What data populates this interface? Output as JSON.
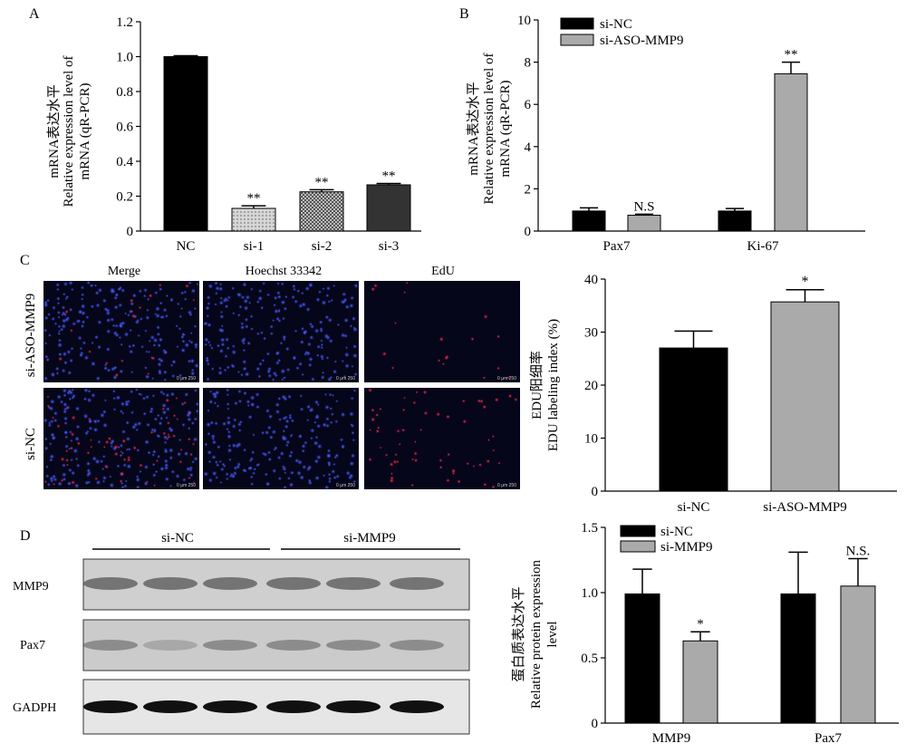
{
  "chart_data": [
    {
      "panel": "A",
      "type": "bar",
      "ylabel_cn": "mRNA表达水平",
      "ylabel_en1": "Relative expression level of",
      "ylabel_en2": "mRNA (qR-PCR)",
      "ylim": [
        0,
        1.2
      ],
      "yticks": [
        "0",
        "0.2",
        "0.4",
        "0.6",
        "0.8",
        "1.0",
        "1.2"
      ],
      "categories": [
        "NC",
        "si-1",
        "si-2",
        "si-3"
      ],
      "values": [
        1.0,
        0.13,
        0.225,
        0.265
      ],
      "errors": [
        0.005,
        0.015,
        0.012,
        0.008
      ],
      "annotations": [
        "",
        "**",
        "**",
        "**"
      ],
      "bar_styles": [
        "black",
        "dots",
        "checker",
        "dark"
      ]
    },
    {
      "panel": "B",
      "type": "bar",
      "ylabel_cn": "mRNA表达水平",
      "ylabel_en1": "Relative expression level of",
      "ylabel_en2": "mRNA (qR-PCR)",
      "ylim": [
        0,
        10
      ],
      "yticks": [
        "0",
        "2",
        "4",
        "6",
        "8",
        "10"
      ],
      "categories": [
        "Pax7",
        "Ki-67"
      ],
      "series": [
        {
          "name": "si-NC",
          "values": [
            0.95,
            0.95
          ],
          "errors": [
            0.15,
            0.12
          ],
          "color": "#000000"
        },
        {
          "name": "si-ASO-MMP9",
          "values": [
            0.75,
            7.45
          ],
          "errors": [
            0.05,
            0.55
          ],
          "color": "#aaaaaa"
        }
      ],
      "annotations": [
        "N.S",
        "**"
      ]
    },
    {
      "panel": "C",
      "type": "bar",
      "ylabel_cn": "EDU阳细率",
      "ylabel_en": "EDU labeling index (%)",
      "ylim": [
        0,
        40
      ],
      "yticks": [
        "0",
        "10",
        "20",
        "30",
        "40"
      ],
      "categories": [
        "si-NC",
        "si-ASO-MMP9"
      ],
      "values": [
        27,
        35.7
      ],
      "errors": [
        3.2,
        2.3
      ],
      "colors": [
        "#000000",
        "#aaaaaa"
      ],
      "annotations": [
        "",
        "*"
      ]
    },
    {
      "panel": "D",
      "type": "bar",
      "ylabel_cn": "蛋白质表达水平",
      "ylabel_en1": "Relative protein expression",
      "ylabel_en2": "level",
      "ylim": [
        0,
        1.5
      ],
      "yticks": [
        "0",
        "0.5",
        "1.0",
        "1.5"
      ],
      "categories": [
        "MMP9",
        "Pax7"
      ],
      "series": [
        {
          "name": "si-NC",
          "values": [
            0.99,
            0.99
          ],
          "errors": [
            0.19,
            0.32
          ],
          "color": "#000000"
        },
        {
          "name": "si-MMP9",
          "values": [
            0.63,
            1.05
          ],
          "errors": [
            0.07,
            0.21
          ],
          "color": "#aaaaaa"
        }
      ],
      "annotations": [
        "*",
        "N.S."
      ]
    }
  ],
  "panel_labels": {
    "a": "A",
    "b": "B",
    "c": "C",
    "d": "D"
  },
  "micro": {
    "columns": [
      "Merge",
      "Hoechst 33342",
      "EdU"
    ],
    "rows": [
      "si-ASO-MMP9",
      "si-NC"
    ],
    "scale_text": "0    μm  250"
  },
  "blot": {
    "groups": [
      "si-NC",
      "si-MMP9"
    ],
    "bands": [
      "MMP9",
      "Pax7",
      "GADPH"
    ]
  }
}
